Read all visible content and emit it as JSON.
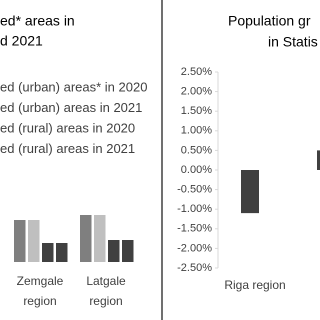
{
  "chart_data": [
    {
      "type": "bar",
      "title_lines": [
        "ed* areas in",
        "d 2021"
      ],
      "categories": [
        "Zemgale region",
        "Latgale region"
      ],
      "series": [
        {
          "name": "ed (urban) areas* in 2020",
          "color": "#7f7f7f",
          "values": [
            42,
            47
          ]
        },
        {
          "name": "ed (urban) areas in 2021",
          "color": "#bfbfbf",
          "values": [
            42,
            47
          ]
        },
        {
          "name": "ed (rural) areas in 2020",
          "color": "#404040",
          "values": [
            19,
            22
          ]
        },
        {
          "name": "ed (rural) areas in 2021",
          "color": "#404040",
          "values": [
            19,
            22
          ]
        }
      ]
    },
    {
      "type": "bar",
      "title_lines": [
        "Population gr",
        "in Statis"
      ],
      "categories": [
        "Riga region",
        null
      ],
      "values": [
        -1.1,
        0.5
      ],
      "color": "#404040",
      "ylim": [
        -2.5,
        2.5
      ],
      "yticks": [
        {
          "value": 2.5,
          "label": "2.50%"
        },
        {
          "value": 2,
          "label": "2.00%"
        },
        {
          "value": 1.5,
          "label": "1.50%"
        },
        {
          "value": 1,
          "label": "1.00%"
        },
        {
          "value": 0.5,
          "label": "0.50%"
        },
        {
          "value": 0,
          "label": "0.00%"
        },
        {
          "value": -0.5,
          "label": "-0.50%"
        },
        {
          "value": -1,
          "label": "-1.00%"
        },
        {
          "value": -1.5,
          "label": "-1.50%"
        },
        {
          "value": -2,
          "label": "-2.00%"
        },
        {
          "value": -2.5,
          "label": "-2.50%"
        }
      ]
    }
  ]
}
